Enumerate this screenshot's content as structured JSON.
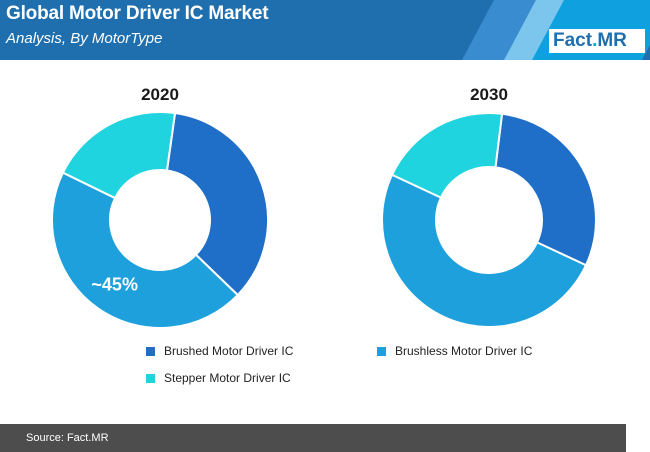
{
  "header": {
    "title": "Global Motor Driver IC Market",
    "subtitle": "Analysis, By MotorType"
  },
  "logo": {
    "text": "Fact",
    "dot": ".",
    "suffix": "MR"
  },
  "chart_data": [
    {
      "type": "pie",
      "title": "2020",
      "categories": [
        "Brushed Motor Driver IC",
        "Brushless Motor Driver IC",
        "Stepper Motor Driver IC"
      ],
      "values": [
        35,
        45,
        20
      ],
      "data_labels": [
        "",
        "~45%",
        ""
      ],
      "colors": [
        "#1f6fc8",
        "#1da0dc",
        "#1fd4de"
      ],
      "donut": true,
      "legend": "bottom"
    },
    {
      "type": "pie",
      "title": "2030",
      "categories": [
        "Brushed Motor Driver IC",
        "Brushless Motor Driver IC",
        "Stepper Motor Driver IC"
      ],
      "values": [
        30,
        50,
        20
      ],
      "data_labels": [
        "",
        "",
        ""
      ],
      "colors": [
        "#1f6fc8",
        "#1da0dc",
        "#1fd4de"
      ],
      "donut": true,
      "legend": "bottom"
    }
  ],
  "legend": [
    {
      "label": "Brushed Motor Driver IC",
      "color": "#1f6fc8"
    },
    {
      "label": "Brushless Motor Driver IC",
      "color": "#1da0dc"
    },
    {
      "label": "Stepper Motor Driver IC",
      "color": "#1fd4de"
    }
  ],
  "footer": {
    "source": "Source: Fact.MR"
  }
}
